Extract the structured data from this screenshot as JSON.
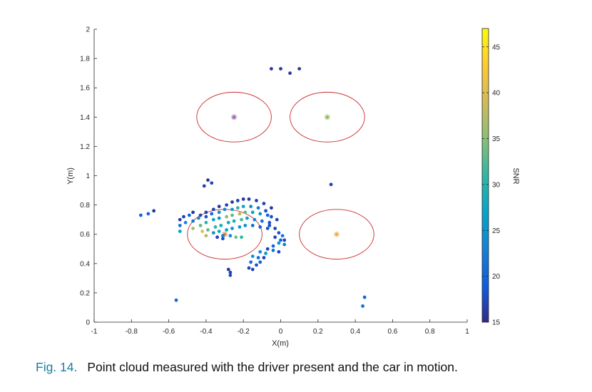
{
  "chart_data": {
    "type": "scatter",
    "xlabel": "X(m)",
    "ylabel": "Y(m)",
    "colorbar_label": "SNR",
    "xlim": [
      -1,
      1
    ],
    "ylim": [
      0,
      2
    ],
    "clim": [
      15,
      47
    ],
    "xticks": [
      "-1",
      "-0.8",
      "-0.6",
      "-0.4",
      "-0.2",
      "0",
      "0.2",
      "0.4",
      "0.6",
      "0.8",
      "1"
    ],
    "yticks": [
      "0",
      "0.2",
      "0.4",
      "0.6",
      "0.8",
      "1",
      "1.2",
      "1.4",
      "1.6",
      "1.8",
      "2"
    ],
    "cticks": [
      "15",
      "20",
      "25",
      "30",
      "35",
      "40",
      "45"
    ],
    "grid": false,
    "colormap": "parula",
    "seat_ellipses": [
      {
        "cx": -0.25,
        "cy": 1.4,
        "rx": 0.2,
        "ry": 0.17,
        "center_color": "#8a4f9e"
      },
      {
        "cx": 0.25,
        "cy": 1.4,
        "rx": 0.2,
        "ry": 0.17,
        "center_color": "#7fae3a"
      },
      {
        "cx": -0.3,
        "cy": 0.6,
        "rx": 0.2,
        "ry": 0.17,
        "center_color": "#c07a2a"
      },
      {
        "cx": 0.3,
        "cy": 0.6,
        "rx": 0.2,
        "ry": 0.17,
        "center_color": "#e0a040"
      }
    ],
    "ellipse_color": "#cc2a2a",
    "points": [
      [
        -0.05,
        1.73,
        16
      ],
      [
        0,
        1.73,
        16
      ],
      [
        0.05,
        1.7,
        16
      ],
      [
        0.1,
        1.73,
        16
      ],
      [
        -0.39,
        0.97,
        16
      ],
      [
        -0.41,
        0.93,
        17
      ],
      [
        -0.37,
        0.95,
        17
      ],
      [
        0.27,
        0.94,
        17
      ],
      [
        -0.75,
        0.73,
        20
      ],
      [
        -0.71,
        0.74,
        20
      ],
      [
        -0.68,
        0.76,
        16
      ],
      [
        -0.54,
        0.7,
        16
      ],
      [
        -0.52,
        0.72,
        17
      ],
      [
        -0.49,
        0.73,
        20
      ],
      [
        -0.47,
        0.75,
        16
      ],
      [
        -0.43,
        0.73,
        17
      ],
      [
        -0.4,
        0.75,
        17
      ],
      [
        -0.36,
        0.77,
        17
      ],
      [
        -0.33,
        0.79,
        16
      ],
      [
        -0.29,
        0.8,
        17
      ],
      [
        -0.26,
        0.82,
        16
      ],
      [
        -0.23,
        0.83,
        17
      ],
      [
        -0.2,
        0.84,
        16
      ],
      [
        -0.17,
        0.84,
        16
      ],
      [
        -0.13,
        0.83,
        17
      ],
      [
        -0.09,
        0.81,
        17
      ],
      [
        -0.05,
        0.78,
        16
      ],
      [
        -0.54,
        0.66,
        22
      ],
      [
        -0.51,
        0.68,
        23
      ],
      [
        -0.47,
        0.69,
        22
      ],
      [
        -0.44,
        0.71,
        24
      ],
      [
        -0.4,
        0.72,
        18
      ],
      [
        -0.37,
        0.74,
        20
      ],
      [
        -0.33,
        0.75,
        25
      ],
      [
        -0.3,
        0.77,
        23
      ],
      [
        -0.26,
        0.77,
        26
      ],
      [
        -0.23,
        0.78,
        30
      ],
      [
        -0.2,
        0.79,
        27
      ],
      [
        -0.16,
        0.79,
        24
      ],
      [
        -0.12,
        0.78,
        22
      ],
      [
        -0.08,
        0.76,
        18
      ],
      [
        -0.54,
        0.62,
        26
      ],
      [
        -0.47,
        0.64,
        36
      ],
      [
        -0.43,
        0.66,
        33
      ],
      [
        -0.4,
        0.68,
        30
      ],
      [
        -0.36,
        0.7,
        27
      ],
      [
        -0.33,
        0.71,
        24
      ],
      [
        -0.29,
        0.72,
        35
      ],
      [
        -0.26,
        0.73,
        33
      ],
      [
        -0.22,
        0.74,
        37
      ],
      [
        -0.19,
        0.75,
        33
      ],
      [
        -0.15,
        0.75,
        27
      ],
      [
        -0.11,
        0.74,
        25
      ],
      [
        -0.07,
        0.73,
        20
      ],
      [
        -0.42,
        0.62,
        40
      ],
      [
        -0.39,
        0.63,
        33
      ],
      [
        -0.35,
        0.65,
        31
      ],
      [
        -0.32,
        0.66,
        29
      ],
      [
        -0.28,
        0.68,
        28
      ],
      [
        -0.25,
        0.69,
        29
      ],
      [
        -0.21,
        0.7,
        32
      ],
      [
        -0.18,
        0.71,
        27
      ],
      [
        -0.14,
        0.7,
        23
      ],
      [
        -0.1,
        0.69,
        21
      ],
      [
        -0.06,
        0.68,
        18
      ],
      [
        -0.4,
        0.59,
        37
      ],
      [
        -0.36,
        0.61,
        25
      ],
      [
        -0.33,
        0.62,
        28
      ],
      [
        -0.29,
        0.63,
        27
      ],
      [
        -0.26,
        0.64,
        25
      ],
      [
        -0.22,
        0.65,
        26
      ],
      [
        -0.19,
        0.66,
        25
      ],
      [
        -0.15,
        0.66,
        21
      ],
      [
        -0.11,
        0.65,
        20
      ],
      [
        -0.07,
        0.64,
        18
      ],
      [
        -0.34,
        0.58,
        17
      ],
      [
        -0.31,
        0.59,
        23
      ],
      [
        -0.27,
        0.59,
        24
      ],
      [
        -0.24,
        0.58,
        34
      ],
      [
        -0.21,
        0.58,
        31
      ],
      [
        -0.31,
        0.57,
        18
      ],
      [
        -0.05,
        0.72,
        18
      ],
      [
        -0.02,
        0.7,
        17
      ],
      [
        -0.06,
        0.66,
        18
      ],
      [
        -0.03,
        0.64,
        17
      ],
      [
        -0.01,
        0.61,
        18
      ],
      [
        0.01,
        0.59,
        22
      ],
      [
        0.02,
        0.56,
        17
      ],
      [
        0.0,
        0.56,
        20
      ],
      [
        -0.03,
        0.58,
        17
      ],
      [
        -0.01,
        0.54,
        25
      ],
      [
        0.02,
        0.53,
        23
      ],
      [
        -0.04,
        0.52,
        20
      ],
      [
        -0.07,
        0.5,
        17
      ],
      [
        -0.04,
        0.49,
        21
      ],
      [
        -0.01,
        0.48,
        17
      ],
      [
        -0.11,
        0.48,
        24
      ],
      [
        -0.08,
        0.47,
        26
      ],
      [
        -0.15,
        0.45,
        25
      ],
      [
        -0.12,
        0.44,
        21
      ],
      [
        -0.09,
        0.44,
        17
      ],
      [
        -0.16,
        0.41,
        21
      ],
      [
        -0.13,
        0.39,
        18
      ],
      [
        -0.11,
        0.41,
        20
      ],
      [
        -0.17,
        0.37,
        17
      ],
      [
        -0.15,
        0.36,
        17
      ],
      [
        -0.28,
        0.36,
        16
      ],
      [
        -0.27,
        0.34,
        17
      ],
      [
        -0.27,
        0.32,
        17
      ],
      [
        -0.56,
        0.15,
        20
      ],
      [
        0.45,
        0.17,
        20
      ],
      [
        0.44,
        0.11,
        21
      ]
    ]
  }
}
